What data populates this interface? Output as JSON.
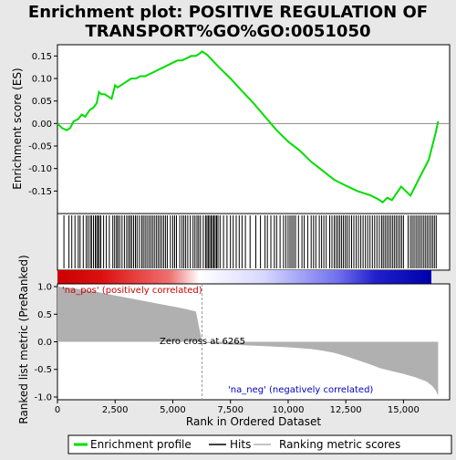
{
  "chart_data": {
    "type": "line",
    "title_lines": [
      "Enrichment plot: POSITIVE REGULATION OF",
      "TRANSPORT%GO%GO:0051050"
    ],
    "xlabel": "Rank in Ordered Dataset",
    "xlim": [
      0,
      17000
    ],
    "x_ticks": [
      0,
      2500,
      5000,
      7500,
      10000,
      12500,
      15000
    ],
    "x_tick_labels": [
      "0",
      "2,500",
      "5,000",
      "7,500",
      "10,000",
      "12,500",
      "15,000"
    ],
    "es_panel": {
      "ylabel": "Enrichment score (ES)",
      "ylim": [
        -0.2,
        0.175
      ],
      "y_ticks": [
        0.15,
        0.1,
        0.05,
        0.0,
        -0.05,
        -0.1,
        -0.15
      ],
      "y_tick_labels": [
        "0.15",
        "0.10",
        "0.05",
        "0.00",
        "-0.05",
        "-0.10",
        "-0.15"
      ],
      "series": [
        {
          "name": "Enrichment profile",
          "color": "#00dd00",
          "x": [
            0,
            200,
            400,
            550,
            700,
            900,
            1050,
            1200,
            1400,
            1550,
            1700,
            1800,
            1900,
            2050,
            2200,
            2350,
            2500,
            2600,
            2750,
            2900,
            3050,
            3200,
            3400,
            3600,
            3800,
            4000,
            4200,
            4400,
            4600,
            4800,
            5000,
            5200,
            5400,
            5600,
            5800,
            6000,
            6150,
            6265,
            6500,
            7000,
            7500,
            8000,
            8500,
            9000,
            9500,
            10000,
            10500,
            11000,
            11500,
            12000,
            12500,
            13000,
            13300,
            13600,
            13900,
            14100,
            14300,
            14500,
            14700,
            14900,
            15100,
            15300,
            15500,
            15700,
            15900,
            16100,
            16250,
            16400,
            16500
          ],
          "values": [
            0.0,
            -0.01,
            -0.015,
            -0.01,
            0.005,
            0.01,
            0.02,
            0.015,
            0.03,
            0.035,
            0.045,
            0.07,
            0.065,
            0.065,
            0.06,
            0.055,
            0.085,
            0.08,
            0.085,
            0.09,
            0.095,
            0.1,
            0.1,
            0.105,
            0.105,
            0.11,
            0.115,
            0.12,
            0.125,
            0.13,
            0.135,
            0.14,
            0.14,
            0.145,
            0.15,
            0.15,
            0.155,
            0.16,
            0.152,
            0.125,
            0.1,
            0.072,
            0.045,
            0.015,
            -0.015,
            -0.04,
            -0.06,
            -0.085,
            -0.105,
            -0.125,
            -0.138,
            -0.15,
            -0.155,
            -0.16,
            -0.168,
            -0.175,
            -0.165,
            -0.17,
            -0.155,
            -0.14,
            -0.15,
            -0.16,
            -0.14,
            -0.12,
            -0.1,
            -0.08,
            -0.05,
            -0.02,
            0.005
          ]
        }
      ]
    },
    "hits": {
      "name": "Hits",
      "color": "#000000",
      "positions": [
        280,
        500,
        620,
        760,
        900,
        980,
        1120,
        1250,
        1330,
        1420,
        1480,
        1560,
        1640,
        1700,
        1760,
        1820,
        1880,
        2000,
        2120,
        2250,
        2400,
        2480,
        2560,
        2620,
        2700,
        2800,
        2900,
        3000,
        3080,
        3150,
        3220,
        3300,
        3380,
        3450,
        3550,
        3650,
        3720,
        3800,
        3880,
        3960,
        4040,
        4120,
        4200,
        4280,
        4360,
        4440,
        4520,
        4600,
        4680,
        4760,
        4900,
        5000,
        5080,
        5160,
        5300,
        5400,
        5480,
        5560,
        5650,
        5760,
        5880,
        5960,
        6050,
        6120,
        6200,
        6320,
        6420,
        6480,
        6540,
        6600,
        6660,
        6720,
        6780,
        6840,
        6900,
        6960,
        7050,
        7200,
        7350,
        7500,
        7620,
        7750,
        7880,
        8000,
        8150,
        8350,
        8600,
        8800,
        9000,
        9100,
        9250,
        9400,
        9500,
        9650,
        9800,
        9900,
        10000,
        10080,
        10160,
        10240,
        10320,
        10450,
        10600,
        10700,
        10850,
        11000,
        11100,
        11200,
        11350,
        11450,
        11550,
        11650,
        11800,
        11900,
        12000,
        12080,
        12160,
        12240,
        12320,
        12400,
        12480,
        12560,
        12650,
        12750,
        12850,
        12950,
        13050,
        13150,
        13250,
        13350,
        13450,
        13550,
        13650,
        13750,
        13850,
        13950,
        14050,
        14120,
        14200,
        14280,
        14360,
        14440,
        14520,
        14600,
        14680,
        14760,
        14840,
        14920,
        15000,
        15200,
        15300,
        15380,
        15460,
        15540,
        15620,
        15700,
        15780,
        15860,
        15940,
        16020,
        16100,
        16180,
        16260,
        16340,
        16420
      ]
    },
    "metric_panel": {
      "name": "Ranking metric scores",
      "ylabel": "Ranked list metric (PreRanked)",
      "ylim": [
        -1.05,
        1.05
      ],
      "y_ticks": [
        1.0,
        0.5,
        0.0,
        -0.5,
        -1.0
      ],
      "y_tick_labels": [
        "1.0",
        "0.5",
        "0.0",
        "-0.5",
        "-1.0"
      ],
      "color": "#b0b0b0",
      "x": [
        0,
        500,
        1000,
        1500,
        2000,
        2500,
        3000,
        3500,
        4000,
        4500,
        5000,
        5500,
        6000,
        6265,
        6500,
        7000,
        8000,
        9000,
        10000,
        11000,
        11500,
        12000,
        12500,
        13000,
        13500,
        14000,
        14500,
        15000,
        15500,
        16000,
        16250,
        16400,
        16500
      ],
      "values": [
        1.0,
        0.98,
        0.95,
        0.92,
        0.88,
        0.84,
        0.8,
        0.76,
        0.72,
        0.68,
        0.64,
        0.6,
        0.55,
        0.0,
        -0.02,
        -0.04,
        -0.06,
        -0.08,
        -0.1,
        -0.13,
        -0.16,
        -0.2,
        -0.26,
        -0.33,
        -0.4,
        -0.48,
        -0.53,
        -0.58,
        -0.64,
        -0.72,
        -0.8,
        -0.88,
        -0.98
      ]
    },
    "zero_cross_rank": 6265,
    "annotations": {
      "pos_label": "'na_pos' (positively correlated)",
      "neg_label": "'na_neg' (negatively correlated)",
      "zero_cross_label": "Zero cross at 6265"
    },
    "legend": {
      "placement": "bottom",
      "items": [
        {
          "label": "Enrichment profile",
          "color": "#00dd00"
        },
        {
          "label": "Hits",
          "color": "#000000"
        },
        {
          "label": "Ranking metric scores",
          "color": "#b0b0b0"
        }
      ]
    },
    "colorbar": {
      "start_color": "#cc0000",
      "mid_color": "#ffffff",
      "end_color": "#0000aa"
    }
  }
}
